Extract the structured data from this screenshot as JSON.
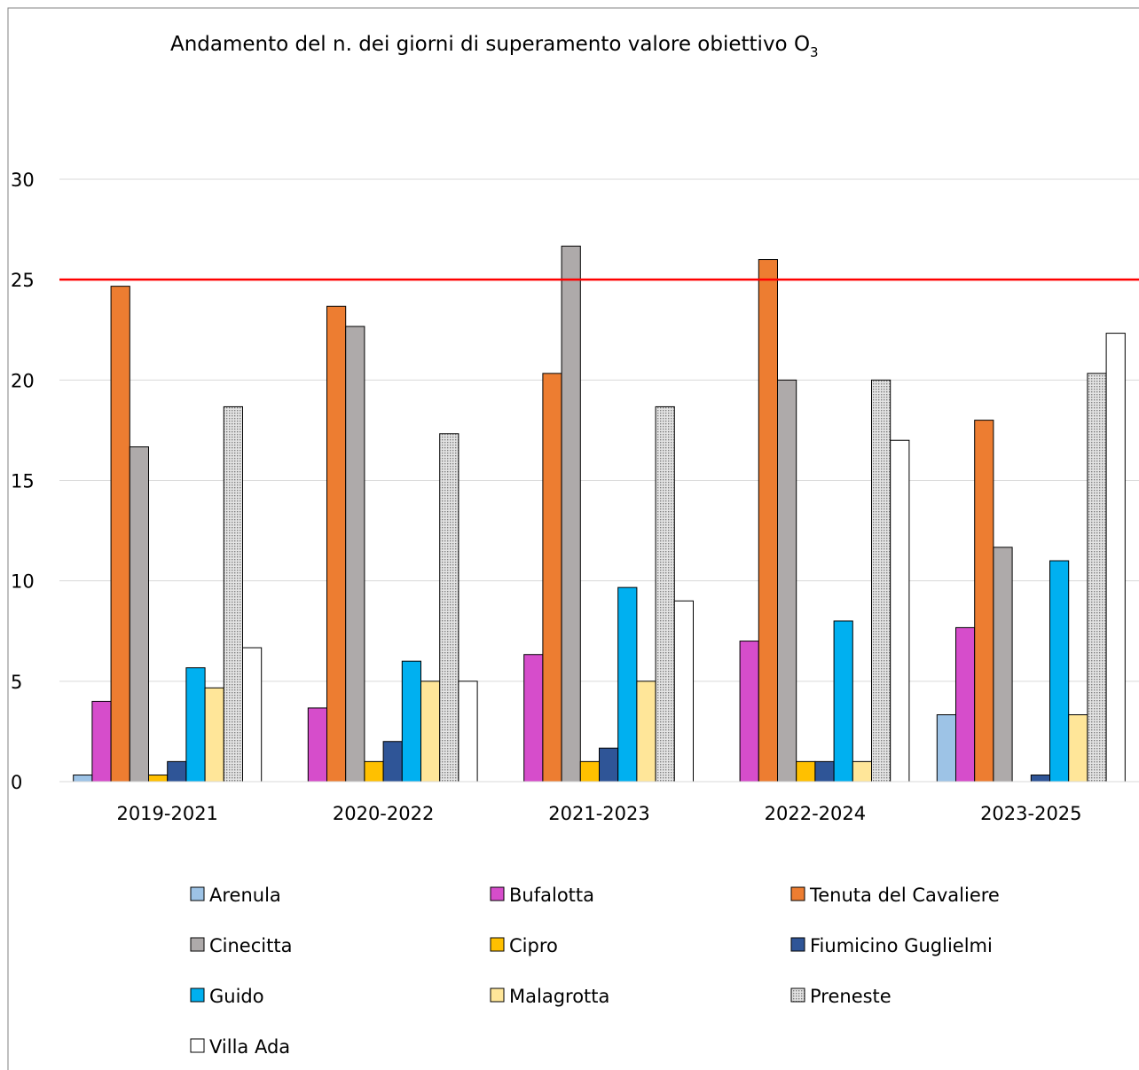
{
  "chart_data": {
    "type": "bar",
    "title": "Andamento del n. dei giorni di superamento valore obiettivo O",
    "title_subscript": "3",
    "xlabel": "",
    "ylabel": "",
    "ylim": [
      0,
      30
    ],
    "yticks": [
      "0",
      "5",
      "10",
      "15",
      "20",
      "25",
      "30"
    ],
    "grid": true,
    "legend_position": "bottom",
    "threshold_line": {
      "value": 25,
      "color": "#FF0000"
    },
    "categories": [
      "2019-2021",
      "2020-2022",
      "2021-2023",
      "2022-2024",
      "2023-2025"
    ],
    "series": [
      {
        "name": "Arenula",
        "color": "#9DC3E6",
        "values": [
          0.33,
          0,
          0,
          0,
          3.33
        ]
      },
      {
        "name": "Bufalotta",
        "color": "#D64DCB",
        "values": [
          4,
          3.67,
          6.33,
          7,
          7.67
        ]
      },
      {
        "name": "Tenuta del Cavaliere",
        "color": "#ED7D31",
        "values": [
          24.67,
          23.67,
          20.33,
          26,
          18
        ]
      },
      {
        "name": "Cinecitta",
        "color": "#AEAAAA",
        "values": [
          16.67,
          22.67,
          26.67,
          20,
          11.67
        ]
      },
      {
        "name": "Cipro",
        "color": "#FFC000",
        "values": [
          0.33,
          1,
          1,
          1,
          0
        ]
      },
      {
        "name": "Fiumicino Guglielmi",
        "color": "#2F5597",
        "values": [
          1,
          2,
          1.67,
          1,
          0.33
        ]
      },
      {
        "name": "Guido",
        "color": "#00B0F0",
        "values": [
          5.67,
          6,
          9.67,
          8,
          11
        ]
      },
      {
        "name": "Malagrotta",
        "color": "#FFE699",
        "values": [
          4.67,
          5,
          5,
          1,
          3.33
        ]
      },
      {
        "name": "Preneste",
        "color": "#D9D9D9",
        "pattern": "dots",
        "values": [
          18.67,
          17.33,
          18.67,
          20,
          20.33
        ]
      },
      {
        "name": "Villa Ada",
        "color": "#FFFFFF",
        "values": [
          6.67,
          5,
          9,
          17,
          22.33
        ]
      }
    ]
  }
}
